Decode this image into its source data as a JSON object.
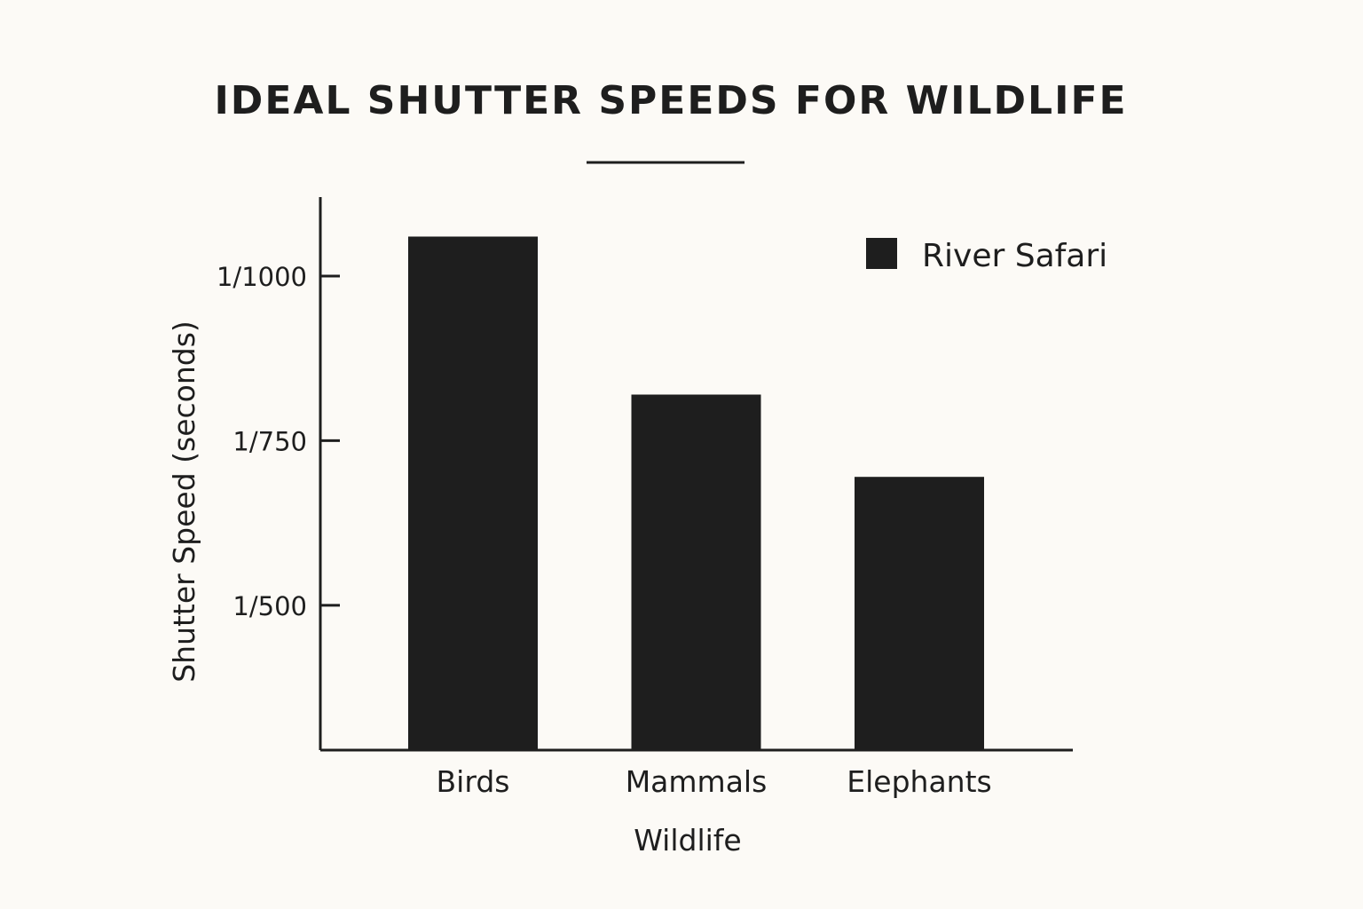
{
  "chart_data": {
    "type": "bar",
    "title": "IDEAL SHUTTER SPEEDS FOR WILDLIFE",
    "xlabel": "Wildlife",
    "ylabel": "Shutter Speed (seconds)",
    "categories": [
      "Birds",
      "Mammals",
      "Elephants"
    ],
    "series": [
      {
        "name": "River Safari",
        "values": [
          1060,
          820,
          695
        ]
      }
    ],
    "ylim": [
      280,
      1120
    ],
    "yticks": [
      {
        "value": 500,
        "label": "1/500"
      },
      {
        "value": 750,
        "label": "1/750"
      },
      {
        "value": 1000,
        "label": "1/1000"
      }
    ],
    "legend_position": "top-right",
    "grid": false,
    "colors": {
      "background": "#fcfaf6",
      "bar": "#1e1e1e",
      "axis": "#1e1e1e",
      "text": "#1e1e1e"
    }
  }
}
